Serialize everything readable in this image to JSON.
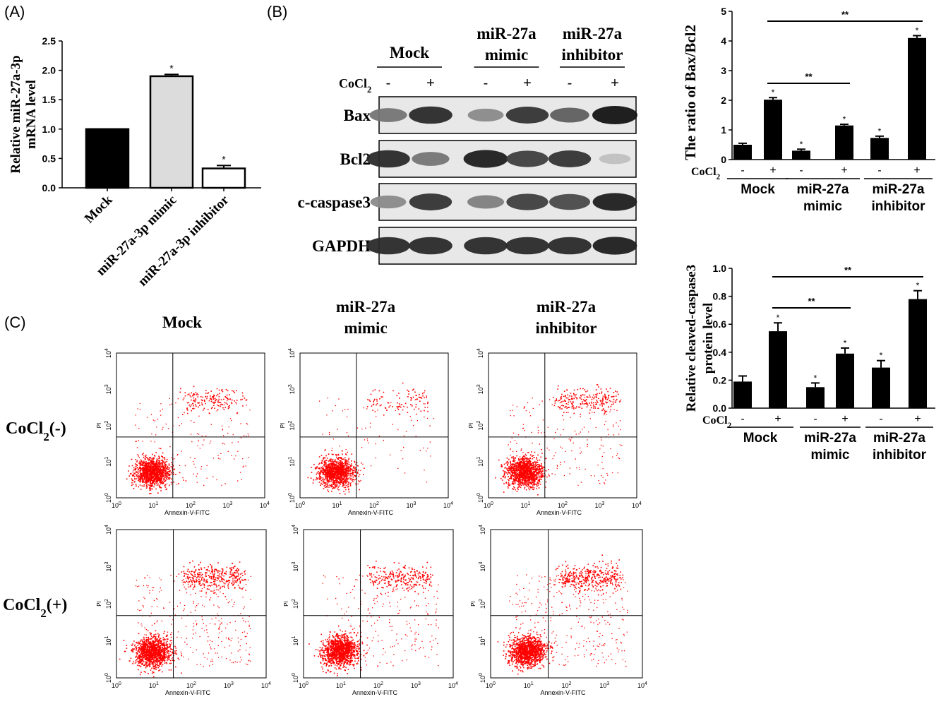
{
  "panels": {
    "a": "(A)",
    "b": "(B)",
    "c": "(C)"
  },
  "chart_data": [
    {
      "id": "A",
      "type": "bar",
      "ylabel": "Relative miR-27a-3p mRNA level",
      "categories": [
        "Mock",
        "miR-27a-3p mimic",
        "miR-27a-3p inhibitor"
      ],
      "values": [
        1.0,
        1.9,
        0.33
      ],
      "errors": [
        0,
        0.03,
        0.05
      ],
      "sig": [
        "",
        "*",
        "*"
      ],
      "fills": [
        "#000000",
        "#dcdcdc",
        "#ffffff"
      ],
      "yticks": [
        "0.0",
        "0.5",
        "1.0",
        "1.5",
        "2.0",
        "2.5"
      ],
      "ylim": [
        0,
        2.5
      ]
    },
    {
      "id": "B1",
      "type": "bar",
      "ylabel": "The ratio of Bax/Bcl2",
      "categories": [
        "-",
        "+",
        "-",
        "+",
        "-",
        "+"
      ],
      "values": [
        0.5,
        2.02,
        0.3,
        1.15,
        0.73,
        4.1
      ],
      "errors": [
        0.05,
        0.07,
        0.05,
        0.04,
        0.06,
        0.08
      ],
      "sig": [
        "",
        "*",
        "*",
        "*",
        "*",
        "*"
      ],
      "yticks": [
        "0",
        "1",
        "2",
        "3",
        "4",
        "5"
      ],
      "ylim": [
        0,
        5
      ],
      "row_label": "CoCl2",
      "groups": [
        [
          "Mock"
        ],
        [
          "miR-27a",
          "mimic"
        ],
        [
          "miR-27a",
          "inhibitor"
        ]
      ],
      "brackets": [
        {
          "from": 1,
          "to": 3,
          "label": "**"
        },
        {
          "from": 1,
          "to": 5,
          "label": "**"
        }
      ]
    },
    {
      "id": "B2",
      "type": "bar",
      "ylabel": "Relative cleaved-caspase3 protein level",
      "categories": [
        "-",
        "+",
        "-",
        "+",
        "-",
        "+"
      ],
      "values": [
        0.19,
        0.55,
        0.15,
        0.39,
        0.29,
        0.78
      ],
      "errors": [
        0.04,
        0.06,
        0.03,
        0.04,
        0.05,
        0.06
      ],
      "sig": [
        "",
        "*",
        "*",
        "*",
        "*",
        "*"
      ],
      "yticks": [
        "0.0",
        "0.2",
        "0.4",
        "0.6",
        "0.8",
        "1.0"
      ],
      "ylim": [
        0,
        1.0
      ],
      "row_label": "CoCl2",
      "groups": [
        [
          "Mock"
        ],
        [
          "miR-27a",
          "mimic"
        ],
        [
          "miR-27a",
          "inhibitor"
        ]
      ],
      "brackets": [
        {
          "from": 1,
          "to": 3,
          "label": "**"
        },
        {
          "from": 1,
          "to": 5,
          "label": "**"
        }
      ]
    }
  ],
  "blot": {
    "groups": [
      [
        "Mock"
      ],
      [
        "miR-27a",
        "mimic"
      ],
      [
        "miR-27a",
        "inhibitor"
      ]
    ],
    "cocl2_label": "CoCl2",
    "lanes": [
      "-",
      "+",
      "-",
      "+",
      "-",
      "+"
    ],
    "rows": [
      {
        "name": "Bax",
        "intensity": [
          0.55,
          0.9,
          0.45,
          0.85,
          0.65,
          1.0
        ]
      },
      {
        "name": "Bcl2",
        "intensity": [
          0.9,
          0.55,
          0.95,
          0.8,
          0.85,
          0.2
        ]
      },
      {
        "name": "c-caspase3",
        "intensity": [
          0.45,
          0.85,
          0.5,
          0.8,
          0.75,
          0.95
        ]
      },
      {
        "name": "GAPDH",
        "intensity": [
          0.9,
          0.9,
          0.9,
          0.9,
          0.9,
          0.95
        ]
      }
    ]
  },
  "flow": {
    "columns": [
      [
        "Mock"
      ],
      [
        "miR-27a",
        "mimic"
      ],
      [
        "miR-27a",
        "inhibitor"
      ]
    ],
    "rows": [
      "CoCl2(-)",
      "CoCl2(+)"
    ],
    "xaxis": "Annexin-V-FITC",
    "yaxis": "PI",
    "ticks": [
      "10",
      "10",
      "10",
      "10",
      "10"
    ],
    "tick_exps": [
      "0",
      "1",
      "2",
      "3",
      "4"
    ],
    "dot_color": "#ff0000"
  }
}
